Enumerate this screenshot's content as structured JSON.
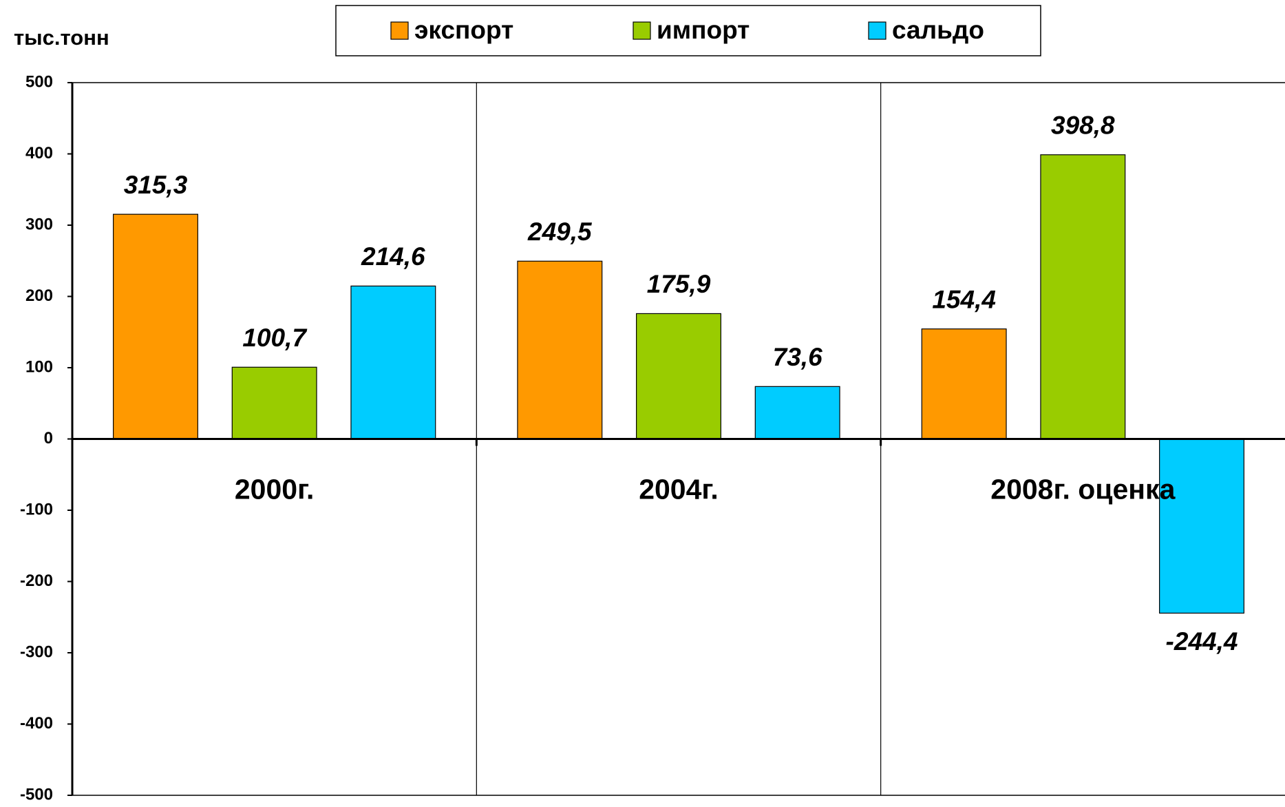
{
  "chart_data": {
    "type": "bar",
    "y_label": "тыс.тонн",
    "categories": [
      "2000г.",
      "2004г.",
      "2008г. оценка"
    ],
    "series": [
      {
        "name": "экспорт",
        "color": "#FF9900",
        "values": [
          315.3,
          249.5,
          154.4
        ],
        "value_labels": [
          "315,3",
          "249,5",
          "154,4"
        ]
      },
      {
        "name": "импорт",
        "color": "#99CC00",
        "values": [
          100.7,
          175.9,
          398.8
        ],
        "value_labels": [
          "100,7",
          "175,9",
          "398,8"
        ]
      },
      {
        "name": "сальдо",
        "color": "#00CCFF",
        "values": [
          214.6,
          73.6,
          -244.4
        ],
        "value_labels": [
          "214,6",
          "73,6",
          "-244,4"
        ]
      }
    ],
    "ylim": [
      -500,
      500
    ],
    "yticks": [
      -500,
      -400,
      -300,
      -200,
      -100,
      0,
      100,
      200,
      300,
      400,
      500
    ],
    "legend": "top"
  }
}
